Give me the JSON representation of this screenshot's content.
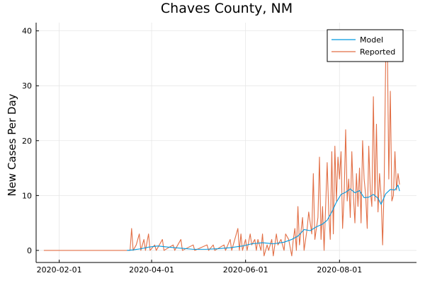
{
  "chart_data": {
    "type": "line",
    "title": "Chaves County, NM",
    "xlabel": "",
    "ylabel": "New Cases Per Day",
    "x_ticks": [
      "2020-02-01",
      "2020-04-01",
      "2020-06-01",
      "2020-08-01"
    ],
    "y_ticks": [
      0,
      10,
      20,
      30,
      40
    ],
    "xlim": [
      "2020-01-17",
      "2020-09-20"
    ],
    "ylim": [
      -2.2,
      41.5
    ],
    "grid": true,
    "legend": {
      "placement": "top-right"
    },
    "series": [
      {
        "name": "Model",
        "color": "#0099e0",
        "points": [
          [
            "2020-03-16",
            0
          ],
          [
            "2020-03-20",
            0.1
          ],
          [
            "2020-03-25",
            0.3
          ],
          [
            "2020-03-30",
            0.6
          ],
          [
            "2020-04-05",
            0.8
          ],
          [
            "2020-04-12",
            0.6
          ],
          [
            "2020-04-20",
            0.4
          ],
          [
            "2020-04-28",
            0.2
          ],
          [
            "2020-05-06",
            0.2
          ],
          [
            "2020-05-14",
            0.3
          ],
          [
            "2020-05-22",
            0.5
          ],
          [
            "2020-05-30",
            0.8
          ],
          [
            "2020-06-05",
            1.2
          ],
          [
            "2020-06-12",
            1.4
          ],
          [
            "2020-06-19",
            1.2
          ],
          [
            "2020-06-26",
            1.5
          ],
          [
            "2020-07-01",
            2.0
          ],
          [
            "2020-07-05",
            2.6
          ],
          [
            "2020-07-09",
            3.8
          ],
          [
            "2020-07-13",
            3.6
          ],
          [
            "2020-07-17",
            4.3
          ],
          [
            "2020-07-21",
            4.8
          ],
          [
            "2020-07-24",
            5.5
          ],
          [
            "2020-07-27",
            7.0
          ],
          [
            "2020-07-30",
            8.8
          ],
          [
            "2020-08-02",
            10.2
          ],
          [
            "2020-08-05",
            10.6
          ],
          [
            "2020-08-08",
            11.2
          ],
          [
            "2020-08-11",
            10.5
          ],
          [
            "2020-08-14",
            10.9
          ],
          [
            "2020-08-17",
            9.6
          ],
          [
            "2020-08-20",
            9.7
          ],
          [
            "2020-08-23",
            10.2
          ],
          [
            "2020-08-26",
            9.5
          ],
          [
            "2020-08-28",
            8.4
          ],
          [
            "2020-08-31",
            10.3
          ],
          [
            "2020-09-03",
            11.1
          ],
          [
            "2020-09-06",
            11.0
          ],
          [
            "2020-09-08",
            11.9
          ],
          [
            "2020-09-09",
            10.8
          ]
        ]
      },
      {
        "name": "Reported",
        "color": "#e26f46",
        "points": [
          [
            "2020-01-22",
            0
          ],
          [
            "2020-03-18",
            0
          ],
          [
            "2020-03-19",
            4
          ],
          [
            "2020-03-20",
            0
          ],
          [
            "2020-03-22",
            1
          ],
          [
            "2020-03-24",
            3
          ],
          [
            "2020-03-25",
            0
          ],
          [
            "2020-03-27",
            2
          ],
          [
            "2020-03-28",
            0
          ],
          [
            "2020-03-30",
            3
          ],
          [
            "2020-03-31",
            0
          ],
          [
            "2020-04-03",
            1
          ],
          [
            "2020-04-04",
            0
          ],
          [
            "2020-04-08",
            2
          ],
          [
            "2020-04-09",
            0
          ],
          [
            "2020-04-15",
            1
          ],
          [
            "2020-04-16",
            0
          ],
          [
            "2020-04-20",
            2
          ],
          [
            "2020-04-21",
            0
          ],
          [
            "2020-04-28",
            1
          ],
          [
            "2020-04-29",
            0
          ],
          [
            "2020-05-07",
            1
          ],
          [
            "2020-05-08",
            0
          ],
          [
            "2020-05-11",
            1
          ],
          [
            "2020-05-12",
            0
          ],
          [
            "2020-05-18",
            1
          ],
          [
            "2020-05-19",
            0
          ],
          [
            "2020-05-22",
            2
          ],
          [
            "2020-05-23",
            0
          ],
          [
            "2020-05-27",
            4
          ],
          [
            "2020-05-28",
            0
          ],
          [
            "2020-05-29",
            3
          ],
          [
            "2020-05-30",
            0
          ],
          [
            "2020-06-01",
            2
          ],
          [
            "2020-06-02",
            0
          ],
          [
            "2020-06-04",
            3
          ],
          [
            "2020-06-05",
            1
          ],
          [
            "2020-06-07",
            2
          ],
          [
            "2020-06-08",
            0
          ],
          [
            "2020-06-09",
            2
          ],
          [
            "2020-06-11",
            0
          ],
          [
            "2020-06-12",
            3
          ],
          [
            "2020-06-13",
            -1
          ],
          [
            "2020-06-15",
            1
          ],
          [
            "2020-06-16",
            0
          ],
          [
            "2020-06-18",
            2
          ],
          [
            "2020-06-19",
            -1
          ],
          [
            "2020-06-21",
            3
          ],
          [
            "2020-06-22",
            1
          ],
          [
            "2020-06-24",
            2
          ],
          [
            "2020-06-26",
            0
          ],
          [
            "2020-06-27",
            3
          ],
          [
            "2020-06-29",
            2
          ],
          [
            "2020-07-01",
            -1
          ],
          [
            "2020-07-02",
            2
          ],
          [
            "2020-07-03",
            4
          ],
          [
            "2020-07-04",
            0
          ],
          [
            "2020-07-05",
            8
          ],
          [
            "2020-07-06",
            1
          ],
          [
            "2020-07-08",
            6
          ],
          [
            "2020-07-09",
            0
          ],
          [
            "2020-07-11",
            4
          ],
          [
            "2020-07-12",
            7
          ],
          [
            "2020-07-14",
            3
          ],
          [
            "2020-07-15",
            14
          ],
          [
            "2020-07-16",
            2
          ],
          [
            "2020-07-18",
            6
          ],
          [
            "2020-07-19",
            17
          ],
          [
            "2020-07-20",
            2
          ],
          [
            "2020-07-21",
            8
          ],
          [
            "2020-07-22",
            0
          ],
          [
            "2020-07-24",
            16
          ],
          [
            "2020-07-25",
            7
          ],
          [
            "2020-07-26",
            2
          ],
          [
            "2020-07-27",
            18
          ],
          [
            "2020-07-28",
            3
          ],
          [
            "2020-07-29",
            19
          ],
          [
            "2020-07-30",
            9
          ],
          [
            "2020-07-31",
            17
          ],
          [
            "2020-08-01",
            13
          ],
          [
            "2020-08-02",
            18
          ],
          [
            "2020-08-03",
            4
          ],
          [
            "2020-08-04",
            10
          ],
          [
            "2020-08-05",
            22
          ],
          [
            "2020-08-06",
            9
          ],
          [
            "2020-08-07",
            13
          ],
          [
            "2020-08-08",
            6
          ],
          [
            "2020-08-09",
            18
          ],
          [
            "2020-08-10",
            10
          ],
          [
            "2020-08-11",
            5
          ],
          [
            "2020-08-12",
            14
          ],
          [
            "2020-08-13",
            8
          ],
          [
            "2020-08-14",
            15
          ],
          [
            "2020-08-15",
            5
          ],
          [
            "2020-08-16",
            20
          ],
          [
            "2020-08-17",
            13
          ],
          [
            "2020-08-18",
            10
          ],
          [
            "2020-08-19",
            4
          ],
          [
            "2020-08-20",
            19
          ],
          [
            "2020-08-21",
            11
          ],
          [
            "2020-08-22",
            8
          ],
          [
            "2020-08-23",
            28
          ],
          [
            "2020-08-24",
            9
          ],
          [
            "2020-08-25",
            23
          ],
          [
            "2020-08-26",
            7
          ],
          [
            "2020-08-27",
            14
          ],
          [
            "2020-08-28",
            10
          ],
          [
            "2020-08-29",
            1
          ],
          [
            "2020-08-30",
            12
          ],
          [
            "2020-08-31",
            35
          ],
          [
            "2020-09-01",
            40
          ],
          [
            "2020-09-02",
            13
          ],
          [
            "2020-09-03",
            29
          ],
          [
            "2020-09-04",
            9
          ],
          [
            "2020-09-05",
            10
          ],
          [
            "2020-09-06",
            18
          ],
          [
            "2020-09-07",
            11
          ],
          [
            "2020-09-08",
            14
          ],
          [
            "2020-09-09",
            12
          ]
        ]
      }
    ]
  }
}
